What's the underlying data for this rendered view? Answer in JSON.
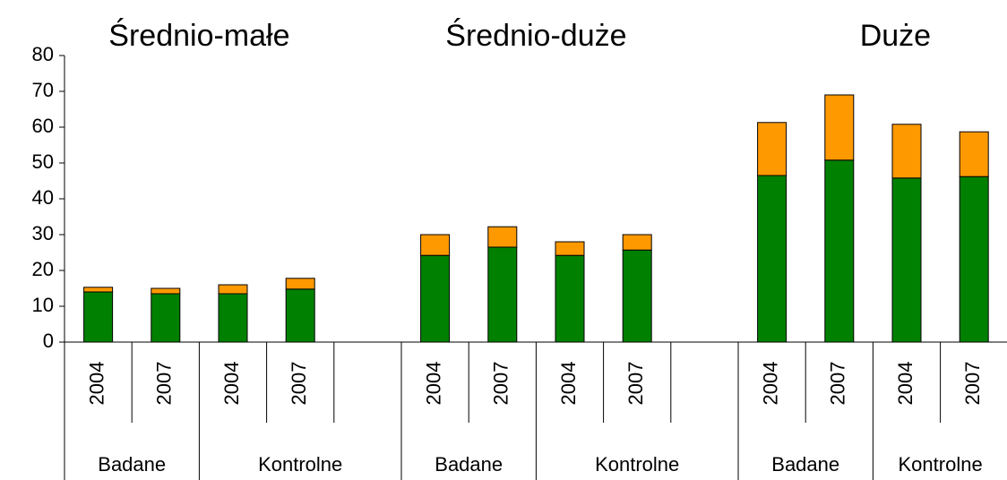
{
  "chart_data": {
    "type": "bar",
    "stacked": true,
    "groups": [
      {
        "name": "Średnio-małe",
        "subgroups": [
          {
            "name": "Badane",
            "categories": [
              "2004",
              "2007"
            ]
          },
          {
            "name": "Kontrolne",
            "categories": [
              "2004",
              "2007",
              null
            ]
          }
        ]
      },
      {
        "name": "Średnio-duże",
        "subgroups": [
          {
            "name": "Badane",
            "categories": [
              "2004",
              "2007"
            ]
          },
          {
            "name": "Kontrolne",
            "categories": [
              "2004",
              "2007",
              null
            ]
          }
        ]
      },
      {
        "name": "Duże",
        "subgroups": [
          {
            "name": "Badane",
            "categories": [
              "2004",
              "2007"
            ]
          },
          {
            "name": "Kontrolne",
            "categories": [
              "2004",
              "2007"
            ]
          }
        ]
      }
    ],
    "series": [
      {
        "color": "#008000",
        "values": [
          14,
          13.5,
          13.5,
          14.8,
          null,
          24.2,
          26.5,
          24.2,
          25.7,
          null,
          46.5,
          50.8,
          45.8,
          46.2
        ]
      },
      {
        "color": "#ff9900",
        "values": [
          1.3,
          1.5,
          2.5,
          3,
          null,
          5.8,
          5.7,
          3.8,
          4.3,
          null,
          14.8,
          18.2,
          15,
          12.5
        ]
      }
    ],
    "ylim": [
      0,
      80
    ],
    "yticks": [
      0,
      10,
      20,
      30,
      40,
      50,
      60,
      70,
      80
    ]
  }
}
